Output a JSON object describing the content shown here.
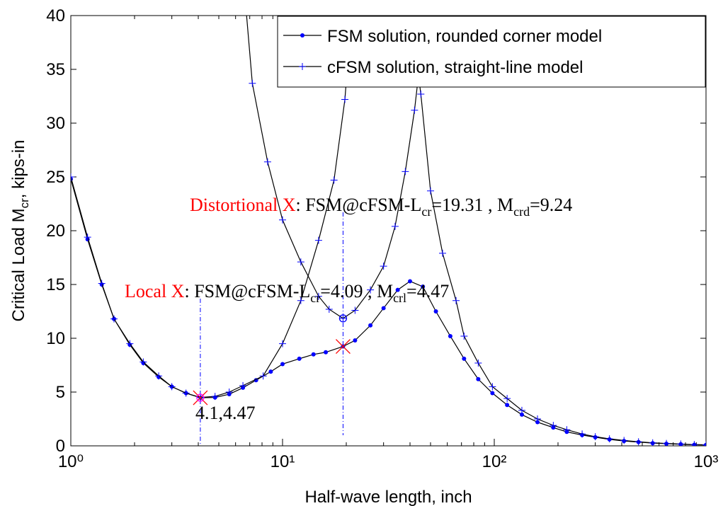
{
  "chart_data": {
    "type": "line",
    "x_label": "Half-wave length, inch",
    "y_label_parts": [
      "Critical Load M",
      "cr",
      ", kips-in"
    ],
    "xscale": "log",
    "xlim": [
      1,
      1000
    ],
    "ylim": [
      0,
      40
    ],
    "xticks": [
      {
        "value": 1,
        "label": "10⁰"
      },
      {
        "value": 10,
        "label": "10¹"
      },
      {
        "value": 100,
        "label": "10²"
      },
      {
        "value": 1000,
        "label": "10³"
      }
    ],
    "xminorticks": [
      2,
      3,
      4,
      5,
      6,
      7,
      8,
      9,
      20,
      30,
      40,
      50,
      60,
      70,
      80,
      90,
      200,
      300,
      400,
      500,
      600,
      700,
      800,
      900
    ],
    "yticks": [
      0,
      5,
      10,
      15,
      20,
      25,
      30,
      35,
      40
    ],
    "legend": "top-right",
    "series": [
      {
        "name": "FSM solution, rounded corner model",
        "color": "#0000ff",
        "line_color": "#000000",
        "marker": "dot",
        "x": [
          1,
          1.2,
          1.4,
          1.6,
          1.9,
          2.2,
          2.6,
          3.0,
          3.5,
          4.1,
          4.8,
          5.6,
          6.5,
          7.5,
          8.8,
          10,
          12,
          14,
          16,
          19.31,
          22,
          26,
          30,
          35,
          40,
          46,
          53,
          62,
          72,
          84,
          98,
          115,
          135,
          160,
          190,
          220,
          260,
          300,
          350,
          410,
          480,
          560,
          650,
          760,
          880,
          1000
        ],
        "values": [
          24.8,
          19.2,
          15.0,
          11.8,
          9.4,
          7.7,
          6.4,
          5.5,
          4.9,
          4.47,
          4.5,
          4.8,
          5.4,
          6.1,
          6.9,
          7.6,
          8.1,
          8.5,
          8.7,
          9.24,
          9.8,
          11.2,
          12.8,
          14.5,
          15.3,
          14.8,
          12.5,
          10.2,
          8.1,
          6.2,
          4.9,
          3.8,
          2.9,
          2.2,
          1.7,
          1.3,
          1.0,
          0.8,
          0.6,
          0.45,
          0.35,
          0.25,
          0.2,
          0.15,
          0.1,
          0.08
        ]
      },
      {
        "name": "cFSM solution, straight-line model",
        "color": "#0000ff",
        "line_color": "#000000",
        "marker": "plus",
        "x": [
          1,
          1.2,
          1.4,
          1.6,
          1.9,
          2.2,
          2.6,
          3.0,
          3.5,
          4.1,
          4.8,
          5.6,
          6.5,
          8.1,
          10,
          12.2,
          14.8,
          17.5,
          19.7,
          21.5,
          null,
          6.5,
          7.2,
          8.5,
          10,
          12.2,
          14.8,
          16.6,
          19.31,
          22,
          26,
          30,
          34,
          38,
          42,
          46,
          48,
          null,
          36,
          40,
          45,
          50,
          57,
          66,
          72,
          84,
          98,
          115,
          135,
          160,
          190,
          220,
          260,
          300,
          350,
          410,
          480,
          560,
          650,
          760,
          880,
          1000
        ],
        "values": [
          25.0,
          19.4,
          15.1,
          11.8,
          9.5,
          7.8,
          6.5,
          5.5,
          4.9,
          4.5,
          4.6,
          5.0,
          5.6,
          6.5,
          9.5,
          13.5,
          19.1,
          24.7,
          32.2,
          42,
          null,
          44,
          33.7,
          26.4,
          21.0,
          17.1,
          13.9,
          12.7,
          11.85,
          12.6,
          14.5,
          16.7,
          20.4,
          25.5,
          31.2,
          38,
          42,
          null,
          48,
          40.5,
          32.7,
          23.7,
          17.9,
          13.5,
          10.2,
          7.7,
          5.5,
          4.4,
          3.3,
          2.5,
          1.9,
          1.5,
          1.1,
          0.85,
          0.65,
          0.5,
          0.38,
          0.28,
          0.22,
          0.17,
          0.12,
          0.1
        ]
      }
    ],
    "annotations": [
      {
        "label": "Local X",
        "label_color": "#ff0000",
        "parts": [
          ": FSM@cFSM-L",
          "cr",
          "=4.09 , M",
          "crl",
          "=4.47"
        ]
      },
      {
        "label": "Distortional X",
        "label_color": "#ff0000",
        "parts": [
          ": FSM@cFSM-L",
          "cr",
          "=19.31 , M",
          "crd",
          "=9.24"
        ]
      }
    ],
    "point_label": "4.1,4.47",
    "crossings": [
      {
        "x": 4.09,
        "y": 4.47
      },
      {
        "x": 19.31,
        "y": 9.24
      }
    ],
    "crossing_color": "#ff0000",
    "circles": [
      {
        "x": 4.09,
        "y": 4.47,
        "color": "#ff00ff"
      },
      {
        "x": 19.31,
        "y": 11.85,
        "color": "#0000ff"
      }
    ]
  }
}
